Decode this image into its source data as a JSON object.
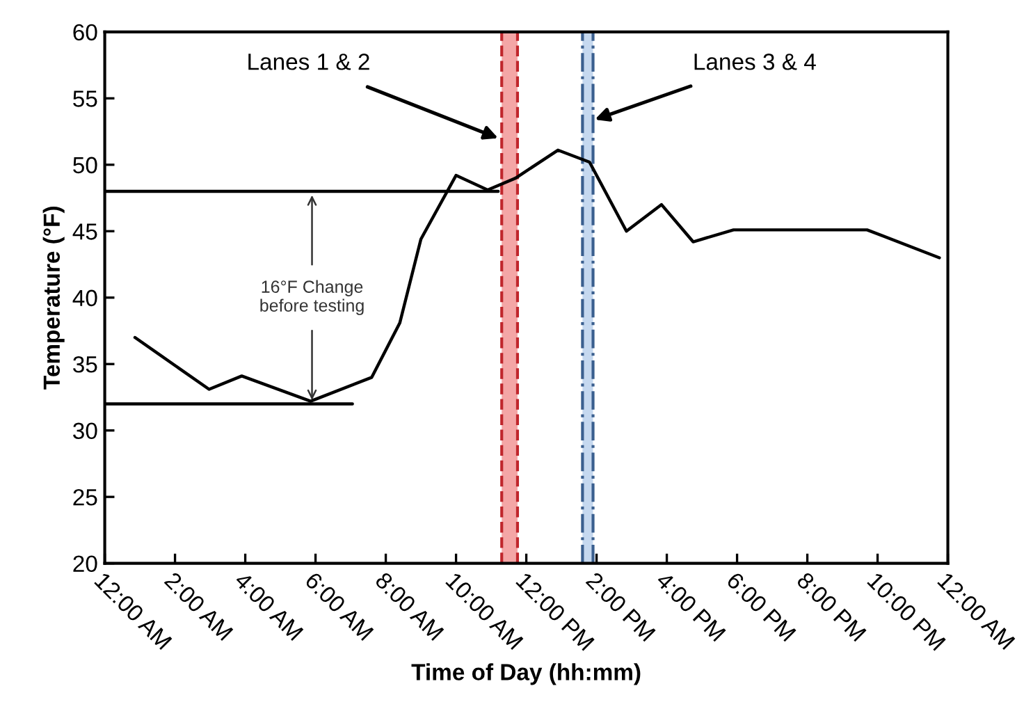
{
  "chart_data": {
    "type": "line",
    "xlabel": "Time of Day (hh:mm)",
    "ylabel": "Temperature (°F)",
    "series": [
      {
        "color": "#000000",
        "x": [
          0.86,
          2.97,
          3.9,
          5.86,
          7.6,
          8.4,
          9.0,
          10.0,
          10.9,
          11.7,
          12.9,
          13.8,
          14.85,
          15.85,
          16.75,
          17.9,
          21.7,
          23.76
        ],
        "values": [
          37,
          33.1,
          34.1,
          32.2,
          34,
          38.1,
          44.4,
          49.2,
          48.1,
          49,
          51.1,
          50.2,
          45,
          47,
          44.2,
          45.1,
          45.1,
          43
        ]
      },
      {
        "color": "#000000",
        "x": [
          0,
          11.2
        ],
        "values": [
          48,
          48
        ]
      },
      {
        "color": "#000000",
        "x": [
          0,
          7.05
        ],
        "values": [
          32,
          32
        ]
      }
    ],
    "xlim": [
      0,
      24
    ],
    "ylim": [
      20,
      60
    ],
    "xticks": [
      {
        "value": 0,
        "label": "12:00 AM"
      },
      {
        "value": 2,
        "label": "2:00 AM"
      },
      {
        "value": 4,
        "label": "4:00 AM"
      },
      {
        "value": 6,
        "label": "6:00 AM"
      },
      {
        "value": 8,
        "label": "8:00 AM"
      },
      {
        "value": 10,
        "label": "10:00 AM"
      },
      {
        "value": 12,
        "label": "12:00 PM"
      },
      {
        "value": 14,
        "label": "2:00 PM"
      },
      {
        "value": 16,
        "label": "4:00 PM"
      },
      {
        "value": 18,
        "label": "6:00 PM"
      },
      {
        "value": 20,
        "label": "8:00 PM"
      },
      {
        "value": 22,
        "label": "10:00 PM"
      },
      {
        "value": 24,
        "label": "12:00 AM"
      }
    ],
    "yticks": [
      20,
      25,
      30,
      35,
      40,
      45,
      50,
      55,
      60
    ],
    "bands": [
      {
        "axis": "x",
        "from": 11.3,
        "to": 11.75,
        "color": "#f4a6a6"
      },
      {
        "axis": "x",
        "from": 13.6,
        "to": 13.9,
        "color": "#c5d8ef"
      }
    ],
    "ref_lines": [
      {
        "axis": "x",
        "value": 11.3,
        "color": "#c0262c",
        "line_style": "dashed"
      },
      {
        "axis": "x",
        "value": 11.75,
        "color": "#c0262c",
        "line_style": "dashed"
      },
      {
        "axis": "x",
        "value": 13.6,
        "color": "#3a5f8f",
        "line_style": "dashdot"
      },
      {
        "axis": "x",
        "value": 13.9,
        "color": "#3a5f8f",
        "line_style": "dashdot"
      }
    ],
    "annotations": [
      {
        "text": "Lanes 1 & 2",
        "x": 11.2,
        "y": 52
      },
      {
        "text": "Lanes 3 & 4",
        "x": 13.95,
        "y": 53.4
      },
      {
        "text": "16°F Change\nbefore testing",
        "x": 5.9,
        "y": 32
      }
    ],
    "grid": false,
    "legend": false,
    "marker": "none",
    "line_style": "solid"
  }
}
